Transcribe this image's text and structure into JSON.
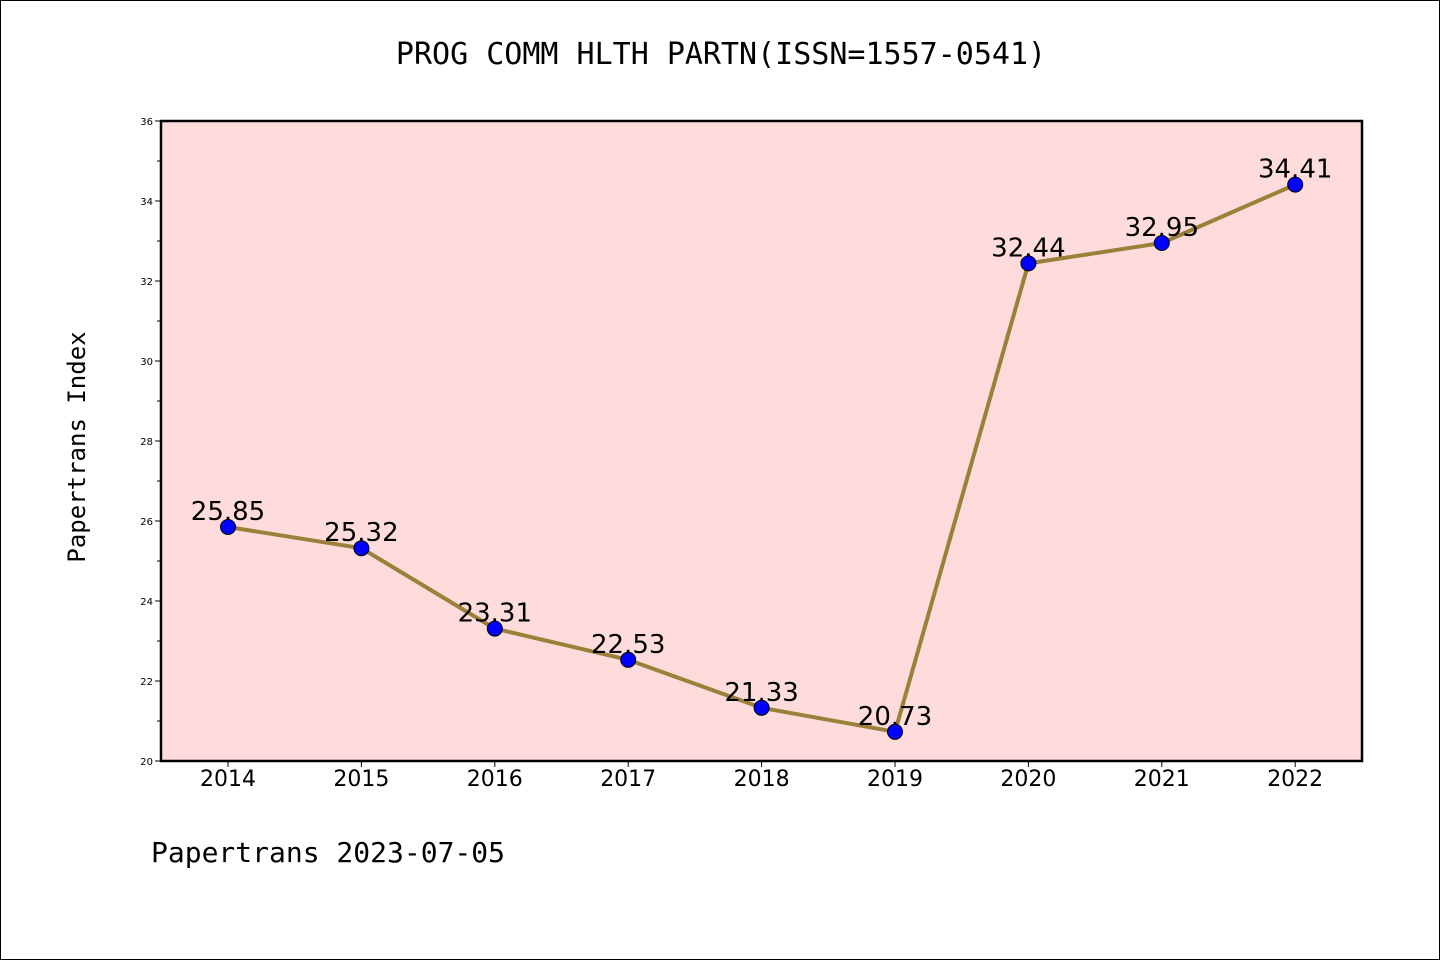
{
  "chart_data": {
    "type": "line",
    "title": "PROG COMM HLTH PARTN(ISSN=1557-0541)",
    "ylabel": "Papertrans Index",
    "xlabel": "",
    "x": [
      "2014",
      "2015",
      "2016",
      "2017",
      "2018",
      "2019",
      "2020",
      "2021",
      "2022"
    ],
    "series": [
      {
        "values": [
          25.85,
          25.32,
          23.31,
          22.53,
          21.33,
          20.73,
          32.44,
          32.95,
          34.41
        ],
        "labels": [
          "25.85",
          "25.32",
          "23.31",
          "22.53",
          "21.33",
          "20.73",
          "32.44",
          "32.95",
          "34.41"
        ]
      }
    ],
    "ylim": [
      20,
      36
    ],
    "yticks": [
      "20",
      "22",
      "24",
      "26",
      "28",
      "30",
      "32",
      "34",
      "36"
    ],
    "grid": false,
    "legend": "none"
  },
  "colors": {
    "plot_background": "#ffdcdc",
    "line": "#9a8038",
    "marker": "#0000ff"
  },
  "footer": {
    "source": "Papertrans 2023-07-05"
  }
}
